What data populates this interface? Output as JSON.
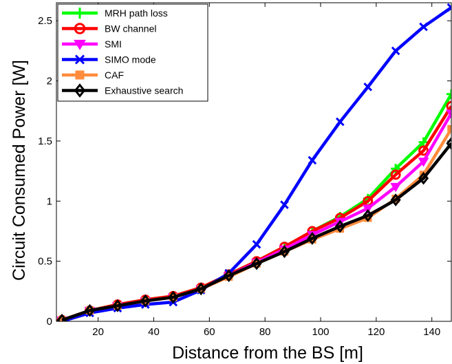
{
  "chart_data": {
    "type": "line",
    "title": "",
    "xlabel": "Distance from the BS [m]",
    "ylabel": "Circuit Consumed Power [W]",
    "xlim": [
      5,
      147
    ],
    "ylim": [
      0,
      2.65
    ],
    "xticks": [
      20,
      40,
      60,
      80,
      100,
      120,
      140
    ],
    "yticks": [
      0,
      0.5,
      1,
      1.5,
      2,
      2.5
    ],
    "ytick_labels": [
      "0",
      "0.5",
      "1",
      "1.5",
      "2",
      "2.5"
    ],
    "grid": false,
    "legend_position": "top-left",
    "x": [
      7,
      17,
      27,
      37,
      47,
      57,
      67,
      77,
      87,
      97,
      107,
      117,
      127,
      137,
      147
    ],
    "series": [
      {
        "name": "MRH path loss",
        "color": "#00ff00",
        "marker": "plus",
        "values": [
          0.01,
          0.09,
          0.14,
          0.18,
          0.21,
          0.28,
          0.39,
          0.5,
          0.62,
          0.75,
          0.87,
          1.02,
          1.27,
          1.49,
          1.89
        ]
      },
      {
        "name": "BW channel",
        "color": "#ff0000",
        "marker": "circle",
        "values": [
          0.01,
          0.09,
          0.14,
          0.18,
          0.21,
          0.28,
          0.39,
          0.5,
          0.62,
          0.75,
          0.86,
          1.0,
          1.22,
          1.42,
          1.79
        ]
      },
      {
        "name": "SMI",
        "color": "#ff00ff",
        "marker": "triangle-down",
        "values": [
          0.01,
          0.09,
          0.13,
          0.17,
          0.2,
          0.27,
          0.38,
          0.49,
          0.6,
          0.72,
          0.83,
          0.94,
          1.12,
          1.33,
          1.73
        ]
      },
      {
        "name": "SIMO mode",
        "color": "#0000ff",
        "marker": "x",
        "values": [
          0.0,
          0.07,
          0.11,
          0.14,
          0.16,
          0.26,
          0.4,
          0.64,
          0.97,
          1.34,
          1.66,
          1.95,
          2.25,
          2.45,
          2.61
        ]
      },
      {
        "name": "CAF",
        "color": "#ff8c3c",
        "marker": "square",
        "values": [
          0.01,
          0.09,
          0.13,
          0.17,
          0.2,
          0.27,
          0.37,
          0.48,
          0.58,
          0.68,
          0.77,
          0.86,
          1.02,
          1.22,
          1.6
        ]
      },
      {
        "name": "Exhaustive search",
        "color": "#000000",
        "marker": "diamond",
        "values": [
          0.01,
          0.09,
          0.13,
          0.17,
          0.2,
          0.27,
          0.38,
          0.48,
          0.58,
          0.69,
          0.79,
          0.88,
          1.01,
          1.19,
          1.48
        ]
      }
    ]
  }
}
